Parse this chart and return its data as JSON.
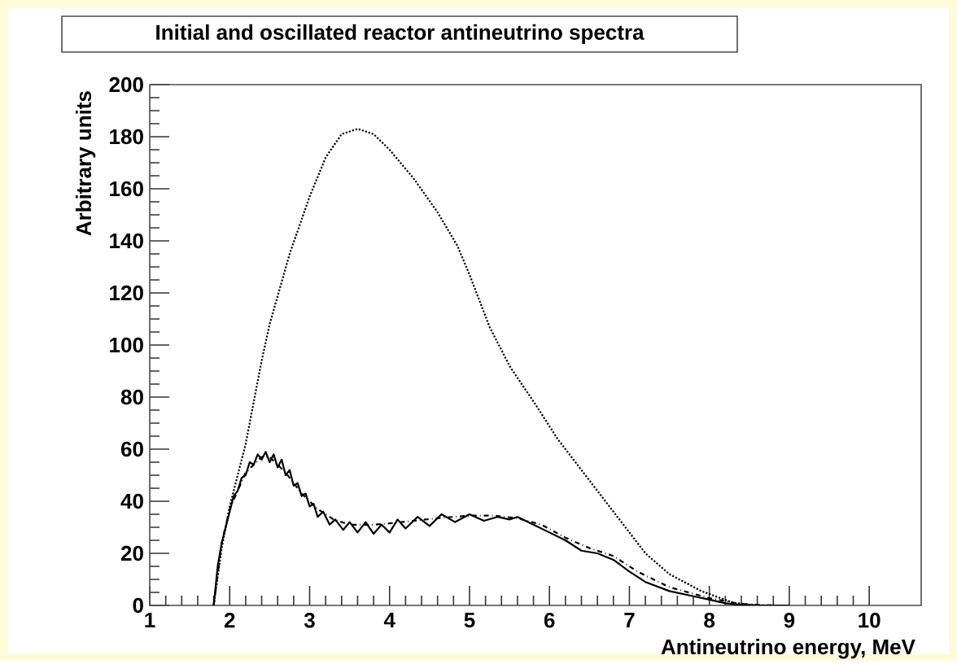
{
  "chart_data": {
    "type": "line",
    "title": "Initial and oscillated reactor antineutrino spectra",
    "xlabel": "Antineutrino energy, MeV",
    "ylabel": "Arbitrary units",
    "xlim": [
      1,
      10.65
    ],
    "ylim": [
      0,
      200
    ],
    "xticks": [
      1,
      2,
      3,
      4,
      5,
      6,
      7,
      8,
      9,
      10
    ],
    "yticks": [
      0,
      20,
      40,
      60,
      80,
      100,
      120,
      140,
      160,
      180,
      200
    ],
    "series": [
      {
        "color": "#000000",
        "line_style": "dotted",
        "x": [
          1.8,
          1.9,
          2.0,
          2.1,
          2.2,
          2.3,
          2.4,
          2.5,
          2.75,
          3.0,
          3.2,
          3.4,
          3.6,
          3.8,
          4.0,
          4.3,
          4.6,
          4.85,
          5.0,
          5.25,
          5.5,
          5.85,
          6.1,
          6.5,
          7.0,
          7.2,
          7.5,
          7.9,
          8.3,
          8.6
        ],
        "values": [
          0,
          22,
          38,
          50,
          62,
          78,
          94,
          108,
          135,
          157,
          172,
          181,
          183,
          181,
          175,
          164,
          151,
          138,
          127,
          107,
          92,
          76,
          64,
          48,
          28,
          20,
          12,
          5.5,
          1,
          0
        ]
      },
      {
        "color": "#000000",
        "line_style": "solid",
        "x": [
          1.8,
          1.85,
          1.9,
          2.0,
          2.05,
          2.1,
          2.15,
          2.2,
          2.25,
          2.3,
          2.35,
          2.4,
          2.45,
          2.5,
          2.55,
          2.6,
          2.65,
          2.7,
          2.75,
          2.8,
          2.85,
          2.9,
          2.95,
          3.0,
          3.05,
          3.1,
          3.17,
          3.25,
          3.32,
          3.42,
          3.5,
          3.6,
          3.7,
          3.8,
          3.9,
          4.0,
          4.1,
          4.2,
          4.35,
          4.5,
          4.65,
          4.82,
          5.0,
          5.18,
          5.35,
          5.5,
          5.6,
          5.8,
          6.0,
          6.2,
          6.4,
          6.6,
          6.8,
          7.0,
          7.2,
          7.5,
          7.8,
          8.0,
          8.2,
          8.4,
          8.7,
          9.0
        ],
        "values": [
          0,
          15,
          24,
          36,
          42,
          44,
          49,
          50,
          55,
          54,
          58,
          56,
          59,
          55,
          58,
          53,
          56,
          50,
          52,
          46,
          47,
          42,
          43,
          38,
          39,
          34,
          36,
          31,
          33,
          29,
          32,
          28,
          32,
          27.5,
          31,
          28,
          33,
          29.5,
          34,
          30.5,
          35,
          32,
          35,
          32.5,
          34,
          33,
          34,
          31,
          28,
          25,
          21,
          20,
          17.5,
          13,
          9,
          5.5,
          3.5,
          2.2,
          0.8,
          0.2,
          0,
          0
        ]
      },
      {
        "color": "#000000",
        "line_style": "dashdot",
        "x": [
          1.8,
          1.9,
          2.0,
          2.2,
          2.4,
          2.5,
          2.7,
          2.9,
          3.1,
          3.3,
          3.5,
          3.8,
          4.0,
          4.3,
          4.6,
          5.0,
          5.3,
          5.6,
          5.9,
          6.2,
          6.5,
          6.8,
          7.1,
          7.5,
          8.0,
          8.4,
          8.8
        ],
        "values": [
          0,
          24,
          37,
          51,
          57,
          57,
          51,
          43,
          37,
          33,
          31,
          31,
          31.5,
          32.5,
          33.5,
          34.5,
          34.5,
          33.5,
          31,
          26,
          22,
          19,
          13,
          7,
          2.8,
          0.5,
          0
        ]
      }
    ]
  }
}
